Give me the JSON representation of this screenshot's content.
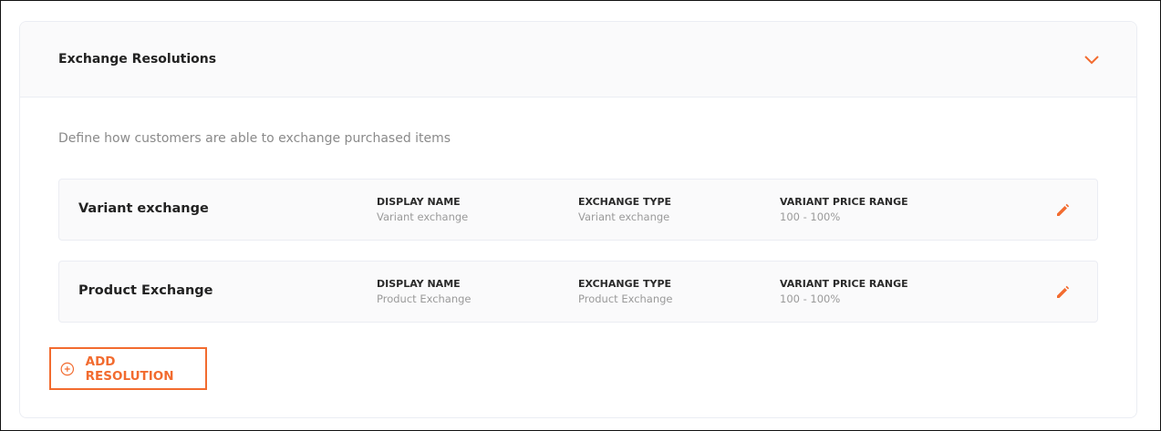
{
  "section": {
    "title": "Exchange Resolutions",
    "description": "Define how customers are able to exchange purchased items",
    "accent": "#f26b2f",
    "collapse_icon": "chevron-down-icon"
  },
  "columns": {
    "display_name": "DISPLAY NAME",
    "exchange_type": "EXCHANGE TYPE",
    "price_range": "VARIANT PRICE RANGE"
  },
  "resolutions": [
    {
      "name": "Variant exchange",
      "display_name": "Variant exchange",
      "exchange_type": "Variant exchange",
      "price_range": "100 - 100%"
    },
    {
      "name": "Product Exchange",
      "display_name": "Product Exchange",
      "exchange_type": "Product Exchange",
      "price_range": "100 - 100%"
    }
  ],
  "add_button": {
    "label": "ADD RESOLUTION",
    "icon": "plus-circle-icon"
  }
}
